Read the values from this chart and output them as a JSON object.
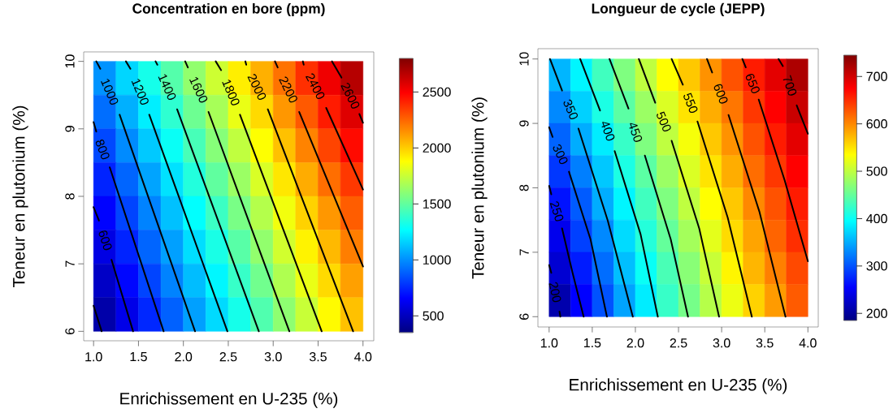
{
  "chart_data": [
    {
      "type": "heatmap",
      "title": "Concentration en bore (ppm)",
      "xlabel": "Enrichissement en U-235 (%)",
      "ylabel": "Teneur en plutonium (%)",
      "x": [
        1.125,
        1.375,
        1.625,
        1.875,
        2.125,
        2.375,
        2.625,
        2.875,
        3.125,
        3.375,
        3.625,
        3.875
      ],
      "y": [
        9.75,
        9.25,
        8.75,
        8.25,
        7.75,
        7.25,
        6.75,
        6.25
      ],
      "cells": [
        [
          1010,
          1170,
          1320,
          1470,
          1620,
          1760,
          1920,
          2070,
          2220,
          2380,
          2530,
          2670
        ],
        [
          920,
          1080,
          1230,
          1380,
          1530,
          1670,
          1830,
          1970,
          2130,
          2280,
          2430,
          2570
        ],
        [
          830,
          990,
          1140,
          1290,
          1440,
          1590,
          1730,
          1880,
          2030,
          2180,
          2330,
          2470
        ],
        [
          740,
          900,
          1050,
          1200,
          1350,
          1500,
          1640,
          1790,
          1940,
          2080,
          2230,
          2360
        ],
        [
          660,
          820,
          970,
          1120,
          1270,
          1410,
          1560,
          1700,
          1850,
          1990,
          2130,
          2270
        ],
        [
          590,
          740,
          900,
          1040,
          1190,
          1330,
          1480,
          1620,
          1770,
          1910,
          2050,
          2190
        ],
        [
          520,
          670,
          820,
          970,
          1110,
          1250,
          1400,
          1540,
          1690,
          1830,
          1970,
          2110
        ],
        [
          450,
          600,
          750,
          890,
          1040,
          1180,
          1320,
          1460,
          1610,
          1750,
          1890,
          2030
        ]
      ],
      "clim": [
        350,
        2800
      ],
      "cticks": [
        500,
        1000,
        1500,
        2000,
        2500
      ],
      "xlim": [
        0.89,
        4.12
      ],
      "ylim": [
        5.86,
        10.14
      ],
      "xticks": [
        {
          "value": 1,
          "label": "1.0"
        },
        {
          "value": 1.5,
          "label": "1.5"
        },
        {
          "value": 2,
          "label": "2.0"
        },
        {
          "value": 2.5,
          "label": "2.5"
        },
        {
          "value": 3,
          "label": "3.0"
        },
        {
          "value": 3.5,
          "label": "3.5"
        },
        {
          "value": 4,
          "label": "4.0"
        }
      ],
      "yticks": [
        6,
        7,
        8,
        9,
        10
      ],
      "series": [
        {
          "type": "line",
          "color": "#000000",
          "x": [
            1.0,
            1.09
          ],
          "values": [
            6.38,
            6.0
          ]
        },
        {
          "type": "line",
          "name": "600",
          "color": "#000000",
          "x": [
            1.0,
            1.06,
            1.13,
            1.2,
            1.44
          ],
          "values": [
            7.84,
            7.64,
            null,
            7.06,
            6.0
          ]
        },
        {
          "type": "line",
          "name": "800",
          "color": "#000000",
          "x": [
            1.0,
            1.03,
            1.1,
            1.18,
            1.78
          ],
          "values": [
            9.1,
            8.96,
            null,
            8.43,
            6.0
          ]
        },
        {
          "type": "line",
          "name": "1000",
          "color": "#000000",
          "x": [
            1.03,
            1.075,
            1.18,
            1.29,
            2.13
          ],
          "values": [
            10.0,
            9.89,
            null,
            9.21,
            6.0
          ]
        },
        {
          "type": "line",
          "name": "1200",
          "color": "#000000",
          "x": [
            1.36,
            1.41,
            1.52,
            1.62,
            2.49
          ],
          "values": [
            10.0,
            9.89,
            null,
            9.21,
            6.0
          ]
        },
        {
          "type": "line",
          "name": "1400",
          "color": "#000000",
          "x": [
            1.69,
            1.71,
            1.82,
            1.93,
            2.84
          ],
          "values": [
            10.0,
            9.95,
            null,
            9.29,
            6.0
          ]
        },
        {
          "type": "line",
          "name": "1600",
          "color": "#000000",
          "x": [
            2.02,
            2.05,
            2.17,
            2.28,
            3.18
          ],
          "values": [
            10.0,
            9.91,
            null,
            9.25,
            6.0
          ]
        },
        {
          "type": "line",
          "name": "1800",
          "color": "#000000",
          "x": [
            2.36,
            2.42,
            2.53,
            2.63,
            3.54
          ],
          "values": [
            10.0,
            9.87,
            null,
            9.21,
            6.0
          ]
        },
        {
          "type": "line",
          "name": "2000",
          "color": "#000000",
          "x": [
            2.69,
            2.7,
            2.82,
            2.94,
            3.89
          ],
          "values": [
            10.0,
            9.95,
            null,
            9.29,
            6.0
          ]
        },
        {
          "type": "line",
          "name": "2200",
          "color": "#000000",
          "x": [
            3.02,
            3.05,
            3.17,
            3.29,
            4.0
          ],
          "values": [
            10.0,
            9.91,
            null,
            9.25,
            6.96
          ]
        },
        {
          "type": "line",
          "name": "2400",
          "color": "#000000",
          "x": [
            3.33,
            3.34,
            3.47,
            3.59,
            4.0
          ],
          "values": [
            10.0,
            9.95,
            null,
            9.31,
            8.1
          ]
        },
        {
          "type": "line",
          "name": "2600",
          "color": "#000000",
          "x": [
            3.655,
            3.76,
            3.86,
            3.96,
            4.0
          ],
          "values": [
            10.0,
            9.76,
            null,
            9.22,
            9.09
          ]
        }
      ]
    },
    {
      "type": "heatmap",
      "title": "Longueur de cycle (JEPP)",
      "xlabel": "Enrichissement en U-235 (%)",
      "ylabel": "Teneur en plutonium (%)",
      "x": [
        1.125,
        1.375,
        1.625,
        1.875,
        2.125,
        2.375,
        2.625,
        2.875,
        3.125,
        3.375,
        3.625,
        3.875
      ],
      "y": [
        9.75,
        9.25,
        8.75,
        8.25,
        7.75,
        7.25,
        6.75,
        6.25
      ],
      "cells": [
        [
          355,
          390,
          430,
          465,
          500,
          535,
          565,
          595,
          630,
          660,
          690,
          720
        ],
        [
          330,
          370,
          410,
          445,
          480,
          515,
          550,
          580,
          610,
          645,
          675,
          705
        ],
        [
          310,
          350,
          385,
          425,
          465,
          500,
          530,
          565,
          595,
          630,
          660,
          690
        ],
        [
          285,
          325,
          365,
          410,
          445,
          480,
          515,
          550,
          580,
          615,
          645,
          675
        ],
        [
          265,
          305,
          350,
          390,
          430,
          465,
          500,
          535,
          565,
          600,
          630,
          660
        ],
        [
          245,
          290,
          330,
          375,
          415,
          450,
          485,
          520,
          555,
          585,
          620,
          650
        ],
        [
          230,
          270,
          315,
          360,
          400,
          435,
          470,
          505,
          540,
          575,
          605,
          635
        ],
        [
          210,
          255,
          300,
          345,
          385,
          425,
          460,
          495,
          525,
          560,
          590,
          625
        ]
      ],
      "clim": [
        185,
        745
      ],
      "cticks": [
        200,
        300,
        400,
        500,
        600,
        700
      ],
      "xlim": [
        0.87,
        4.12
      ],
      "ylim": [
        5.84,
        10.16
      ],
      "xticks": [
        {
          "value": 1,
          "label": "1.0"
        },
        {
          "value": 1.5,
          "label": "1.5"
        },
        {
          "value": 2,
          "label": "2.0"
        },
        {
          "value": 2.5,
          "label": "2.5"
        },
        {
          "value": 3,
          "label": "3.0"
        },
        {
          "value": 3.5,
          "label": "3.5"
        },
        {
          "value": 4,
          "label": "4.0"
        }
      ],
      "yticks": [
        6,
        7,
        8,
        9,
        10
      ],
      "series": [
        {
          "type": "line",
          "name": "200",
          "color": "#000000",
          "x": [
            1.0,
            1.025,
            1.07,
            1.12,
            1.13
          ],
          "values": [
            6.8,
            6.68,
            null,
            6.08,
            6.0
          ]
        },
        {
          "type": "line",
          "name": "250",
          "color": "#000000",
          "x": [
            1.0,
            1.025,
            1.09,
            1.15,
            1.27,
            1.4
          ],
          "values": [
            8.03,
            7.9,
            null,
            7.37,
            6.69,
            6.0
          ]
        },
        {
          "type": "line",
          "name": "300",
          "color": "#000000",
          "x": [
            1.0,
            1.04,
            1.13,
            1.23,
            1.48,
            1.67
          ],
          "values": [
            8.94,
            8.79,
            null,
            8.25,
            7.2,
            6.0
          ]
        },
        {
          "type": "line",
          "name": "350",
          "color": "#000000",
          "x": [
            1.01,
            1.15,
            1.25,
            1.34,
            1.68,
            1.97
          ],
          "values": [
            10.0,
            9.51,
            null,
            8.92,
            7.49,
            6.0
          ]
        },
        {
          "type": "line",
          "name": "400",
          "color": "#000000",
          "x": [
            1.36,
            1.59,
            1.68,
            1.76,
            2.06,
            2.26
          ],
          "values": [
            10.0,
            9.2,
            null,
            8.57,
            7.28,
            6.0
          ]
        },
        {
          "type": "line",
          "name": "450",
          "color": "#000000",
          "x": [
            1.7,
            1.92,
            2.0,
            2.11,
            2.41,
            2.61
          ],
          "values": [
            10.0,
            9.23,
            null,
            8.5,
            7.2,
            6.0
          ]
        },
        {
          "type": "line",
          "name": "500",
          "color": "#000000",
          "x": [
            2.04,
            2.23,
            2.33,
            2.42,
            2.74,
            2.97
          ],
          "values": [
            10.0,
            9.32,
            null,
            8.73,
            7.37,
            6.0
          ]
        },
        {
          "type": "line",
          "name": "550",
          "color": "#000000",
          "x": [
            2.42,
            2.55,
            2.64,
            2.72,
            3.07,
            3.35
          ],
          "values": [
            10.0,
            9.6,
            null,
            9.03,
            7.54,
            6.0
          ]
        },
        {
          "type": "line",
          "name": "600",
          "color": "#000000",
          "x": [
            2.83,
            2.89,
            2.99,
            3.08,
            3.44,
            3.74
          ],
          "values": [
            10.0,
            9.79,
            null,
            9.13,
            7.62,
            6.0
          ]
        },
        {
          "type": "line",
          "name": "650",
          "color": "#000000",
          "x": [
            3.24,
            3.28,
            3.36,
            3.43,
            3.73,
            4.0
          ],
          "values": [
            10.0,
            9.87,
            null,
            9.37,
            8.12,
            6.86
          ]
        },
        {
          "type": "line",
          "name": "700",
          "color": "#000000",
          "x": [
            3.66,
            3.71,
            3.79,
            3.87,
            4.0
          ],
          "values": [
            10.0,
            9.89,
            null,
            9.28,
            8.84
          ]
        }
      ]
    }
  ]
}
